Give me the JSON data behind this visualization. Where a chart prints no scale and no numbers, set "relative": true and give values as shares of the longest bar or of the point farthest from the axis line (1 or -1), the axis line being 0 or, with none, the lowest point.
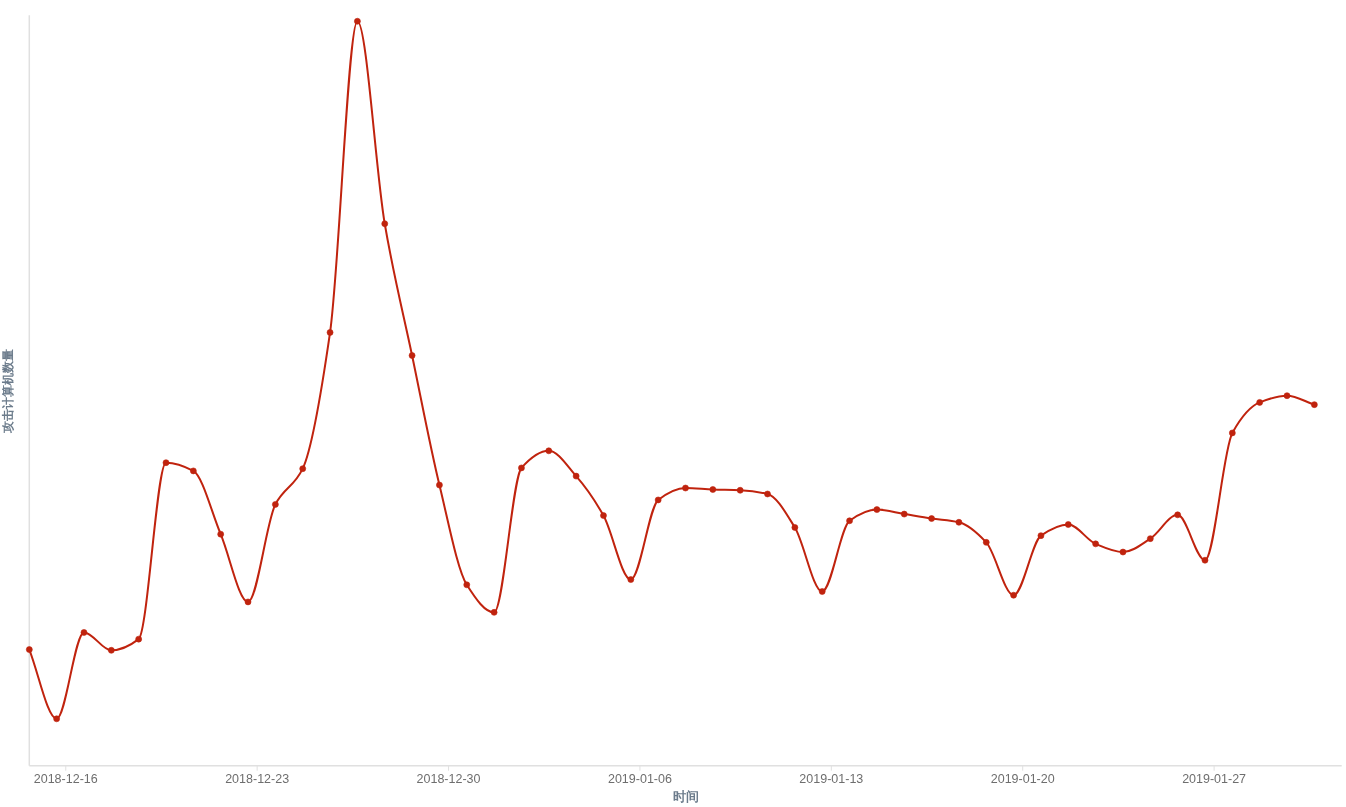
{
  "chart_data": {
    "type": "line",
    "xlabel": "时间",
    "ylabel": "攻击计算机数量",
    "relative": true,
    "marker": "circle",
    "x": [
      "2018-12-14T16:00",
      "2018-12-15T16:00",
      "2018-12-16T16:00",
      "2018-12-17T16:00",
      "2018-12-18T16:00",
      "2018-12-19T16:00",
      "2018-12-20T16:00",
      "2018-12-21T16:00",
      "2018-12-22T16:00",
      "2018-12-23T16:00",
      "2018-12-24T16:00",
      "2018-12-25T16:00",
      "2018-12-26T16:00",
      "2018-12-27T16:00",
      "2018-12-28T16:00",
      "2018-12-29T16:00",
      "2018-12-30T16:00",
      "2018-12-31T16:00",
      "2019-01-01T16:00",
      "2019-01-02T16:00",
      "2019-01-03T16:00",
      "2019-01-04T16:00",
      "2019-01-05T16:00",
      "2019-01-06T16:00",
      "2019-01-07T16:00",
      "2019-01-08T16:00",
      "2019-01-09T16:00",
      "2019-01-10T16:00",
      "2019-01-11T16:00",
      "2019-01-12T16:00",
      "2019-01-13T16:00",
      "2019-01-14T16:00",
      "2019-01-15T16:00",
      "2019-01-16T16:00",
      "2019-01-17T16:00",
      "2019-01-18T16:00",
      "2019-01-19T16:00",
      "2019-01-20T16:00",
      "2019-01-21T16:00",
      "2019-01-22T16:00",
      "2019-01-23T16:00",
      "2019-01-24T16:00",
      "2019-01-25T16:00",
      "2019-01-26T16:00",
      "2019-01-27T16:00",
      "2019-01-28T16:00",
      "2019-01-29T16:00",
      "2019-01-30T16:00"
    ],
    "xlim": [
      "2018-12-14T16:00",
      "2019-01-31T16:00"
    ],
    "xticks": [
      "2018-12-16",
      "2018-12-23",
      "2018-12-30",
      "2019-01-06",
      "2019-01-13",
      "2019-01-20",
      "2019-01-27"
    ],
    "series": [
      {
        "color": "#c0230e",
        "values": [
          0.156,
          0.063,
          0.179,
          0.155,
          0.17,
          0.407,
          0.396,
          0.311,
          0.22,
          0.351,
          0.399,
          0.582,
          1,
          0.728,
          0.551,
          0.377,
          0.243,
          0.206,
          0.4,
          0.423,
          0.389,
          0.336,
          0.25,
          0.357,
          0.373,
          0.371,
          0.37,
          0.365,
          0.32,
          0.234,
          0.329,
          0.344,
          0.338,
          0.332,
          0.327,
          0.3,
          0.229,
          0.309,
          0.324,
          0.298,
          0.287,
          0.305,
          0.337,
          0.276,
          0.447,
          0.488,
          0.497,
          0.485
        ]
      }
    ]
  }
}
